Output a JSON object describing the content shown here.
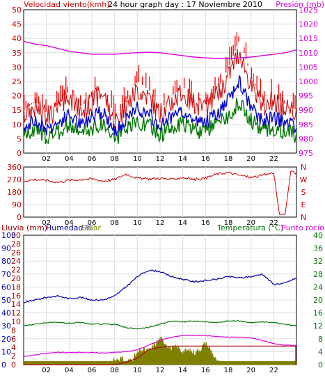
{
  "header": {
    "title": "24 hour graph day : 17 Noviembre 2010",
    "wind_label": "Velocidad viento(kmh)",
    "pressure_label": "Presión (mb)"
  },
  "direction_panel": {
    "compass_labels": [
      "N",
      "W",
      "S",
      "E",
      "N"
    ]
  },
  "bottom_panel": {
    "rain_label": "Lluvia (mm)",
    "humidity_label": "Humedad %",
    "solar_label": "Solar",
    "temperature_label": "Temperatura (°C)",
    "dewpoint_label": "Punto rocío"
  },
  "colors": {
    "wind_gust": "#ff0000",
    "wind_avg": "#cc0000",
    "wind_speed_blue": "#0000cc",
    "wind_green": "#007700",
    "pressure": "#dd00dd",
    "direction": "#cc0000",
    "humidity": "#0000aa",
    "temperature": "#007700",
    "dewpoint": "#dd00dd",
    "solar": "#808000",
    "rain": "#aa0000",
    "grid": "#dddddd",
    "frame": "#000000"
  },
  "chart_data": [
    {
      "type": "line",
      "title": "24 hour graph day : 17 Noviembre 2010",
      "x_ticks": [
        "02",
        "04",
        "06",
        "08",
        "10",
        "12",
        "14",
        "16",
        "18",
        "20",
        "22"
      ],
      "x_range": [
        0,
        24
      ],
      "left_axis": {
        "label": "Velocidad viento(kmh)",
        "ticks": [
          0,
          5,
          10,
          15,
          20,
          25,
          30,
          35,
          40,
          45,
          50
        ],
        "range": [
          0,
          50
        ]
      },
      "right_axis": {
        "label": "Presión (mb)",
        "ticks": [
          975,
          980,
          985,
          990,
          995,
          1000,
          1005,
          1010,
          1015,
          1020,
          1025
        ],
        "range": [
          975,
          1025
        ]
      },
      "series": [
        {
          "name": "Velocidad viento",
          "axis": "left",
          "x": [
            0,
            1,
            2,
            3,
            4,
            5,
            6,
            7,
            8,
            9,
            10,
            11,
            12,
            13,
            14,
            15,
            16,
            17,
            18,
            19,
            20,
            21,
            22,
            23,
            24
          ],
          "values": [
            15,
            18,
            14,
            17,
            22,
            16,
            20,
            24,
            12,
            18,
            25,
            22,
            15,
            20,
            23,
            19,
            17,
            22,
            30,
            40,
            26,
            18,
            20,
            17,
            15
          ]
        },
        {
          "name": "Presión",
          "axis": "right",
          "x": [
            0,
            1,
            2,
            3,
            4,
            5,
            6,
            7,
            8,
            9,
            10,
            11,
            12,
            13,
            14,
            15,
            16,
            17,
            18,
            19,
            20,
            21,
            22,
            23,
            24
          ],
          "values": [
            1014,
            1013,
            1012.5,
            1011.5,
            1010.5,
            1010,
            1009.5,
            1009.5,
            1009.5,
            1009.8,
            1010,
            1010.2,
            1010,
            1009.5,
            1009,
            1008.5,
            1008.2,
            1008,
            1008,
            1008.2,
            1008.5,
            1009,
            1009.5,
            1010,
            1011
          ]
        }
      ]
    },
    {
      "type": "line",
      "x_ticks": [
        "02",
        "04",
        "06",
        "08",
        "10",
        "12",
        "14",
        "16",
        "18",
        "20",
        "22"
      ],
      "x_range": [
        0,
        24
      ],
      "left_axis": {
        "ticks": [
          0,
          90,
          180,
          270,
          360
        ],
        "range": [
          0,
          360
        ]
      },
      "right_axis_labels": [
        "N",
        "W",
        "S",
        "E",
        "N"
      ],
      "series": [
        {
          "name": "Dirección",
          "x": [
            0,
            1,
            2,
            3,
            4,
            5,
            6,
            7,
            8,
            9,
            10,
            11,
            12,
            13,
            14,
            15,
            16,
            17,
            18,
            19,
            20,
            21,
            22,
            22.5,
            23,
            23.5,
            24
          ],
          "values": [
            260,
            270,
            265,
            250,
            265,
            270,
            275,
            260,
            270,
            310,
            280,
            275,
            280,
            270,
            285,
            270,
            280,
            310,
            320,
            300,
            285,
            300,
            320,
            20,
            20,
            330,
            315
          ]
        }
      ]
    },
    {
      "type": "line",
      "x_ticks": [
        "02",
        "04",
        "06",
        "08",
        "10",
        "12",
        "14",
        "16",
        "18",
        "20",
        "22"
      ],
      "x_range": [
        0,
        24
      ],
      "axes": {
        "rain": {
          "label": "Lluvia (mm)",
          "ticks": [
            0,
            2,
            4,
            6,
            8,
            10,
            12,
            14,
            16,
            18,
            20,
            22,
            24,
            26,
            28,
            30
          ],
          "range": [
            0,
            30
          ]
        },
        "humidity": {
          "label": "Humedad %",
          "ticks": [
            0,
            10,
            20,
            30,
            40,
            50,
            60,
            70,
            80,
            90,
            100
          ],
          "range": [
            0,
            100
          ]
        },
        "temperature": {
          "label": "Temperatura (°C)",
          "ticks": [
            0,
            4,
            8,
            12,
            16,
            20,
            24,
            28,
            32,
            36,
            40
          ],
          "range": [
            0,
            40
          ]
        }
      },
      "series": [
        {
          "name": "Humedad",
          "axis": "humidity",
          "x": [
            0,
            1,
            2,
            3,
            4,
            5,
            6,
            7,
            8,
            9,
            10,
            11,
            12,
            13,
            14,
            15,
            16,
            17,
            18,
            19,
            20,
            21,
            22,
            23,
            24
          ],
          "values": [
            48,
            50,
            52,
            53,
            51,
            52,
            50,
            50,
            53,
            60,
            68,
            73,
            72,
            68,
            66,
            64,
            65,
            66,
            68,
            67,
            68,
            70,
            62,
            63,
            67
          ]
        },
        {
          "name": "Temperatura",
          "axis": "temperature",
          "x": [
            0,
            1,
            2,
            3,
            4,
            5,
            6,
            7,
            8,
            9,
            10,
            11,
            12,
            13,
            14,
            15,
            16,
            17,
            18,
            19,
            20,
            21,
            22,
            23,
            24
          ],
          "values": [
            12,
            12.5,
            13,
            13,
            12.8,
            13,
            12.5,
            12.5,
            12.5,
            11.5,
            11,
            11.5,
            12.5,
            13.5,
            13.2,
            13.5,
            13.2,
            13,
            13.5,
            13.5,
            13,
            13.2,
            13,
            12.5,
            12
          ]
        },
        {
          "name": "Punto rocío",
          "axis": "temperature",
          "x": [
            0,
            1,
            2,
            3,
            4,
            5,
            6,
            7,
            8,
            9,
            10,
            11,
            12,
            13,
            14,
            15,
            16,
            17,
            18,
            19,
            20,
            21,
            22,
            23,
            24
          ],
          "values": [
            2.5,
            3,
            3.5,
            3.8,
            3.7,
            3.8,
            3.7,
            3.6,
            3.8,
            4,
            4.6,
            6,
            7.5,
            8.5,
            9,
            9,
            9,
            8.7,
            8.5,
            8.5,
            8.3,
            7.5,
            6.5,
            6,
            6
          ]
        },
        {
          "name": "Lluvia",
          "axis": "rain",
          "x": [
            0,
            8,
            9,
            10,
            11,
            12,
            13,
            23.5
          ],
          "values": [
            0,
            0,
            0.5,
            1.5,
            3.5,
            4,
            4.3,
            4.3
          ]
        },
        {
          "name": "Solar",
          "axis": "rain",
          "x": [
            0,
            7.5,
            8,
            8.5,
            9,
            9.5,
            10,
            10.5,
            11,
            11.5,
            12,
            12.5,
            13,
            13.5,
            14,
            14.5,
            15,
            15.5,
            16,
            16.5,
            17,
            17.5,
            24
          ],
          "values": [
            0,
            0,
            1,
            1.5,
            0.5,
            1.2,
            2.5,
            3.5,
            3,
            4.5,
            6,
            5,
            3.5,
            4,
            3,
            3.2,
            2.8,
            3.5,
            5,
            3.2,
            0.5,
            0,
            0
          ]
        }
      ]
    }
  ]
}
